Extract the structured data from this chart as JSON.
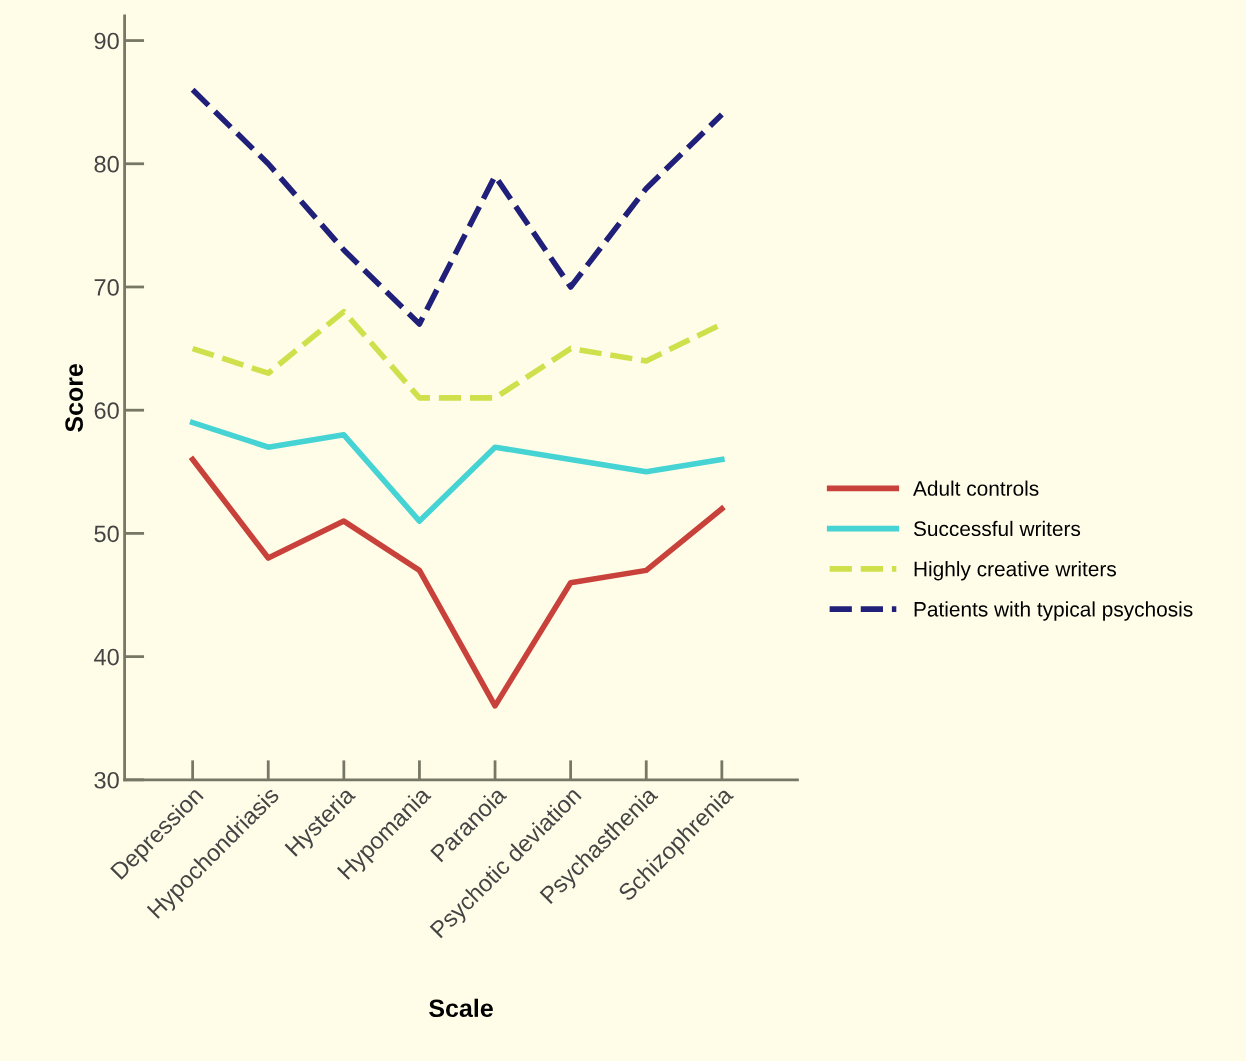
{
  "chart_data": {
    "type": "line",
    "xlabel": "Scale",
    "ylabel": "Score",
    "categories": [
      "Depression",
      "Hypochondriasis",
      "Hysteria",
      "Hypomania",
      "Paranoia",
      "Psychotic deviation",
      "Psychasthenia",
      "Schizophrenia"
    ],
    "series": [
      {
        "name": "Adult controls",
        "color": "#c8413a",
        "line_style": "solid",
        "values": [
          56,
          48,
          51,
          47,
          36,
          46,
          47,
          52
        ]
      },
      {
        "name": "Successful writers",
        "color": "#45d3d3",
        "line_style": "solid",
        "values": [
          59,
          57,
          58,
          51,
          57,
          56,
          55,
          56
        ]
      },
      {
        "name": "Highly creative writers",
        "color": "#cfe04c",
        "line_style": "dashed",
        "values": [
          65,
          63,
          68,
          61,
          61,
          65,
          64,
          67
        ]
      },
      {
        "name": "Patients with typical psychosis",
        "color": "#20207a",
        "line_style": "dashed",
        "values": [
          86,
          80,
          73,
          67,
          79,
          70,
          78,
          84
        ]
      }
    ],
    "ylim": [
      30,
      92
    ],
    "yticks": [
      30,
      40,
      50,
      60,
      70,
      80,
      90
    ],
    "grid": false,
    "legend": "right",
    "marker": "none"
  }
}
